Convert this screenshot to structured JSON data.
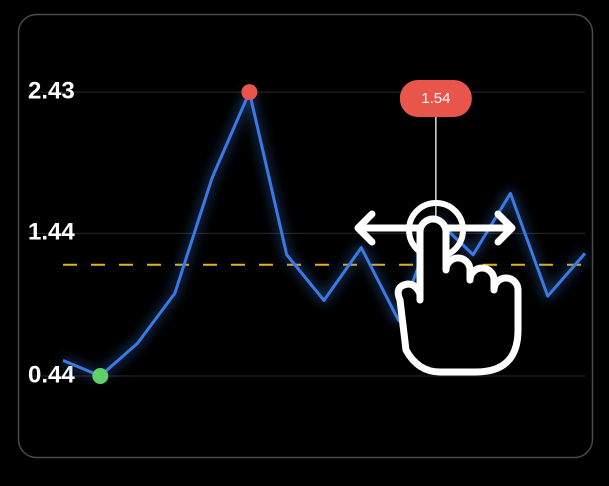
{
  "chart_data": {
    "type": "line",
    "categories": [
      null,
      null,
      null,
      null,
      null,
      null,
      null,
      null,
      null,
      null,
      null,
      null,
      null,
      null,
      null
    ],
    "values": [
      0.55,
      0.44,
      0.67,
      1.02,
      1.83,
      2.43,
      1.29,
      0.97,
      1.34,
      0.83,
      1.54,
      1.29,
      1.72,
      1.0,
      1.3
    ],
    "color": "#3b7ae4",
    "min_color": "#5fd068",
    "max_color": "#e8554a",
    "ylim": [
      0.3,
      2.55
    ],
    "yticks": [
      0.44,
      1.44,
      2.43
    ],
    "grid": true,
    "reference_line": {
      "value": 1.22,
      "color": "#e3b22b"
    },
    "selected": 10,
    "tooltip_color": "#e8554a"
  }
}
